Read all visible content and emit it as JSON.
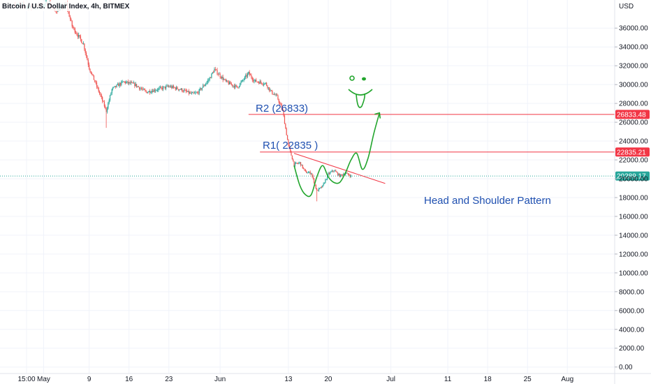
{
  "header": {
    "symbol": "Bitcoin / U.S. Dollar Index, 4h, BITMEX"
  },
  "colors": {
    "up": "#26a69a",
    "down": "#ef5350",
    "level": "#f23645",
    "trend": "#f23645",
    "projection": "#22a52d",
    "text_blue": "#1e4fb0",
    "last_price": "#26a69a"
  },
  "chart_data": {
    "type": "candlestick",
    "title": "",
    "y_axis": {
      "unit": "USD",
      "min": 0,
      "max": 38000,
      "ticks": [
        0,
        2000,
        4000,
        6000,
        8000,
        10000,
        12000,
        14000,
        16000,
        18000,
        20000,
        22000,
        24000,
        26000,
        28000,
        30000,
        32000,
        34000,
        36000
      ],
      "tick_labels": [
        "0.00",
        "2000.00",
        "4000.00",
        "6000.00",
        "8000.00",
        "10000.00",
        "12000.00",
        "14000.00",
        "16000.00",
        "18000.00",
        "20000.00",
        "22000.00",
        "24000.00",
        "26000.00",
        "28000.00",
        "30000.00",
        "32000.00",
        "34000.00",
        "36000.00"
      ]
    },
    "x_axis": {
      "ticks": [
        {
          "date": "2022-04-28",
          "label": "15:00"
        },
        {
          "date": "2022-05-01",
          "label": "May"
        },
        {
          "date": "2022-05-09",
          "label": "9"
        },
        {
          "date": "2022-05-16",
          "label": "16"
        },
        {
          "date": "2022-05-23",
          "label": "23"
        },
        {
          "date": "2022-06-01",
          "label": "Jun"
        },
        {
          "date": "2022-06-13",
          "label": "13"
        },
        {
          "date": "2022-06-20",
          "label": "20"
        },
        {
          "date": "2022-07-01",
          "label": "Jul"
        },
        {
          "date": "2022-07-11",
          "label": "11"
        },
        {
          "date": "2022-07-18",
          "label": "18"
        },
        {
          "date": "2022-07-25",
          "label": "25"
        },
        {
          "date": "2022-08-01",
          "label": "Aug"
        }
      ]
    },
    "price_path": [
      {
        "date": "2022-04-26",
        "price": 38500
      },
      {
        "date": "2022-04-29",
        "price": 38200
      },
      {
        "date": "2022-05-02",
        "price": 38600
      },
      {
        "date": "2022-05-03",
        "price": 37800
      },
      {
        "date": "2022-05-05",
        "price": 38500
      },
      {
        "date": "2022-05-06",
        "price": 36200
      },
      {
        "date": "2022-05-08",
        "price": 34300
      },
      {
        "date": "2022-05-09",
        "price": 31800
      },
      {
        "date": "2022-05-10",
        "price": 30300
      },
      {
        "date": "2022-05-11",
        "price": 28800
      },
      {
        "date": "2022-05-12",
        "price": 27200
      },
      {
        "date": "2022-05-13",
        "price": 29500
      },
      {
        "date": "2022-05-15",
        "price": 30300
      },
      {
        "date": "2022-05-17",
        "price": 30000
      },
      {
        "date": "2022-05-19",
        "price": 29200
      },
      {
        "date": "2022-05-21",
        "price": 29500
      },
      {
        "date": "2022-05-23",
        "price": 29800
      },
      {
        "date": "2022-05-25",
        "price": 29500
      },
      {
        "date": "2022-05-27",
        "price": 29000
      },
      {
        "date": "2022-05-28",
        "price": 29100
      },
      {
        "date": "2022-05-30",
        "price": 30500
      },
      {
        "date": "2022-05-31",
        "price": 31600
      },
      {
        "date": "2022-06-02",
        "price": 30300
      },
      {
        "date": "2022-06-04",
        "price": 29700
      },
      {
        "date": "2022-06-06",
        "price": 31200
      },
      {
        "date": "2022-06-07",
        "price": 30400
      },
      {
        "date": "2022-06-09",
        "price": 30100
      },
      {
        "date": "2022-06-10",
        "price": 29200
      },
      {
        "date": "2022-06-11",
        "price": 28700
      },
      {
        "date": "2022-06-12",
        "price": 27200
      },
      {
        "date": "2022-06-13",
        "price": 23500
      },
      {
        "date": "2022-06-14",
        "price": 21500
      },
      {
        "date": "2022-06-15",
        "price": 21700
      },
      {
        "date": "2022-06-16",
        "price": 20700
      },
      {
        "date": "2022-06-17",
        "price": 20600
      },
      {
        "date": "2022-06-18",
        "price": 18700
      },
      {
        "date": "2022-06-19",
        "price": 19200
      },
      {
        "date": "2022-06-20",
        "price": 20500
      },
      {
        "date": "2022-06-21",
        "price": 20900
      },
      {
        "date": "2022-06-22",
        "price": 20300
      },
      {
        "date": "2022-06-23",
        "price": 20600
      },
      {
        "date": "2022-06-24",
        "price": 20289
      }
    ],
    "low_wicks": [
      {
        "date": "2022-05-12",
        "low": 25400
      },
      {
        "date": "2022-06-18",
        "low": 17600
      }
    ],
    "levels": [
      {
        "name": "R2",
        "value": 26833.48,
        "axis_label": "26833.48",
        "from": "2022-06-06"
      },
      {
        "name": "R1",
        "value": 22835.21,
        "axis_label": "22835.21",
        "from": "2022-06-08"
      }
    ],
    "last_price": {
      "value": 20289.17,
      "label": "20289.17"
    },
    "trendline": {
      "from": {
        "date": "2022-06-14",
        "price": 22700
      },
      "to": {
        "date": "2022-06-30",
        "price": 19500
      }
    },
    "projection_path": [
      {
        "date": "2022-06-14",
        "price": 21400
      },
      {
        "date": "2022-06-15",
        "price": 19300
      },
      {
        "date": "2022-06-16",
        "price": 18300
      },
      {
        "date": "2022-06-17",
        "price": 18300
      },
      {
        "date": "2022-06-18",
        "price": 20200
      },
      {
        "date": "2022-06-19",
        "price": 21400
      },
      {
        "date": "2022-06-20",
        "price": 20200
      },
      {
        "date": "2022-06-21",
        "price": 19600
      },
      {
        "date": "2022-06-22",
        "price": 19600
      },
      {
        "date": "2022-06-23",
        "price": 20600
      },
      {
        "date": "2022-06-24",
        "price": 22000
      },
      {
        "date": "2022-06-25",
        "price": 22700
      },
      {
        "date": "2022-06-26",
        "price": 21000
      },
      {
        "date": "2022-06-27",
        "price": 22200
      },
      {
        "date": "2022-06-28",
        "price": 24800
      },
      {
        "date": "2022-06-29",
        "price": 27000
      }
    ],
    "annotations": {
      "r2": "R2 (26833)",
      "r1": "R1( 22835 )",
      "pattern": "Head and Shoulder Pattern"
    }
  }
}
